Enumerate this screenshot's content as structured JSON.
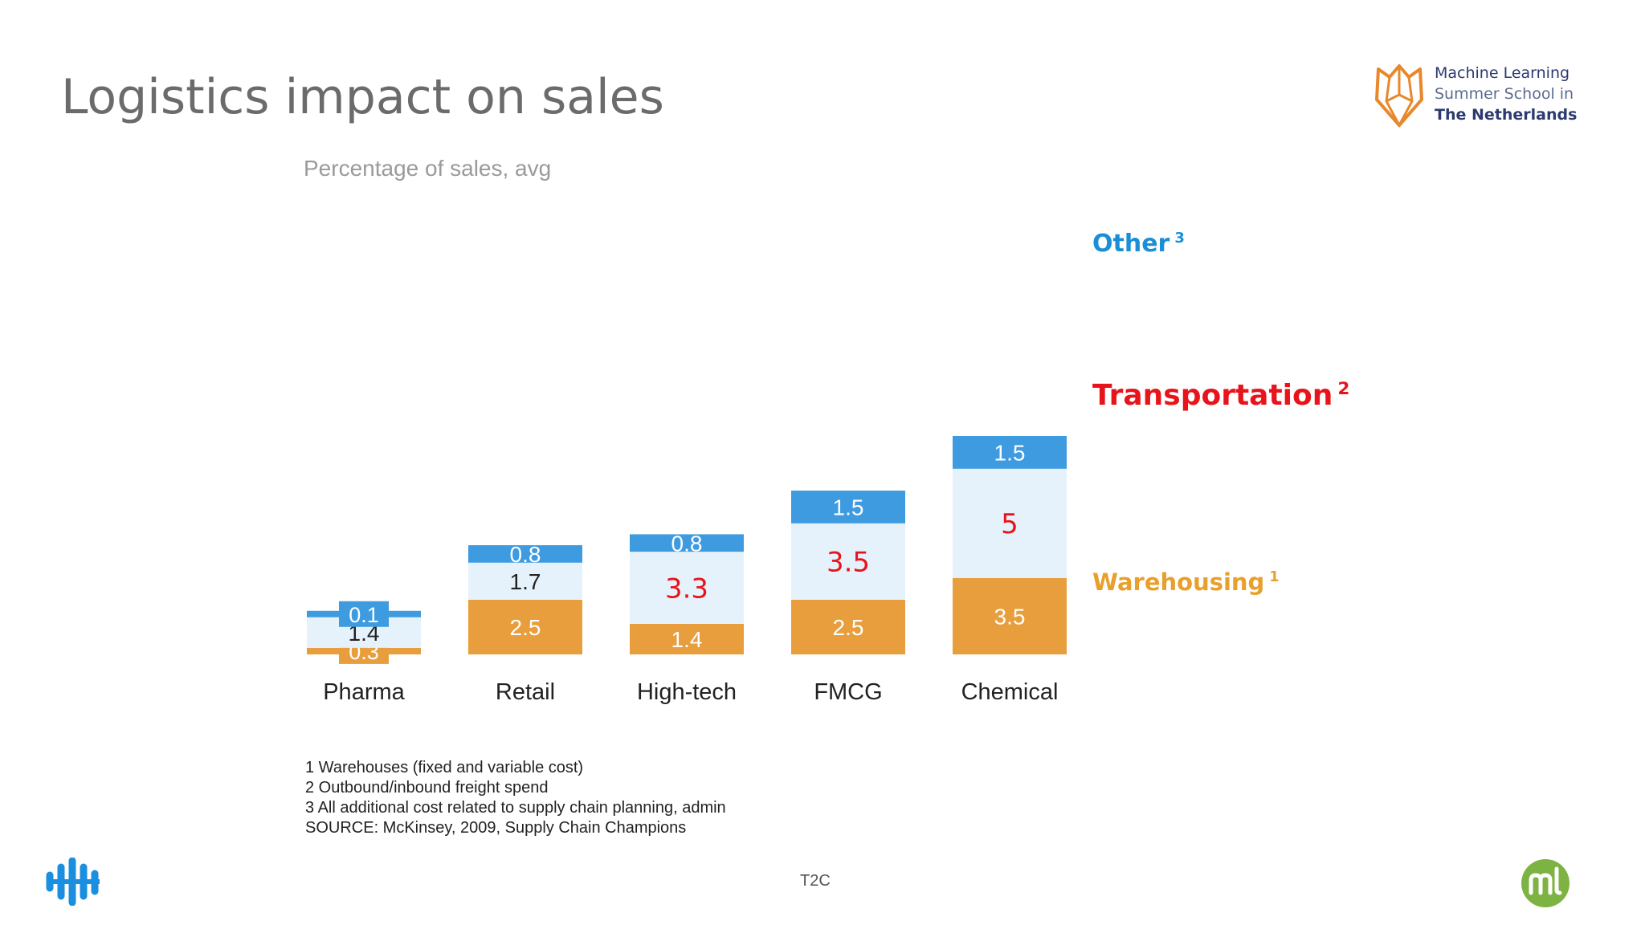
{
  "slide": {
    "title": "Logistics impact on sales",
    "footer_center": "T2C"
  },
  "brand": {
    "line1": "Machine Learning",
    "line2": "Summer School in",
    "line3": "The  Netherlands"
  },
  "chart_data": {
    "type": "bar",
    "stacked": true,
    "subtitle": "Percentage of sales, avg",
    "categories": [
      "Pharma",
      "Retail",
      "High-tech",
      "FMCG",
      "Chemical"
    ],
    "series": [
      {
        "name": "Warehousing",
        "values": [
          0.3,
          2.5,
          1.4,
          2.5,
          3.5
        ],
        "color": "#e89e3c"
      },
      {
        "name": "Transportation",
        "values": [
          1.4,
          1.7,
          3.3,
          3.5,
          5
        ],
        "color": "#e6f2fb"
      },
      {
        "name": "Other",
        "values": [
          0.1,
          0.8,
          0.8,
          1.5,
          1.5
        ],
        "color": "#3e9be0"
      }
    ],
    "value_labels": {
      "Warehousing": [
        "0.3",
        "2.5",
        "1.4",
        "2.5",
        "3.5"
      ],
      "Transportation": [
        "1.4",
        "1.7",
        "3.3",
        "3.5",
        "5"
      ],
      "Other": [
        "0.1",
        "0.8",
        "0.8",
        "1.5",
        "1.5"
      ]
    },
    "highlight_color": "#e8141c",
    "legend": [
      {
        "label": "Other",
        "sup": "3",
        "color": "#1a8fd6"
      },
      {
        "label": "Transportation",
        "sup": "2",
        "color": "#e8141c"
      },
      {
        "label": "Warehousing",
        "sup": "1",
        "color": "#e8a02c"
      }
    ],
    "legend_position": "right",
    "grid": false
  },
  "footnotes": [
    "1  Warehouses (fixed and variable cost)",
    "2  Outbound/inbound freight spend",
    "3  All additional cost related to supply chain planning, admin",
    "SOURCE:  McKinsey, 2009, Supply Chain Champions"
  ]
}
